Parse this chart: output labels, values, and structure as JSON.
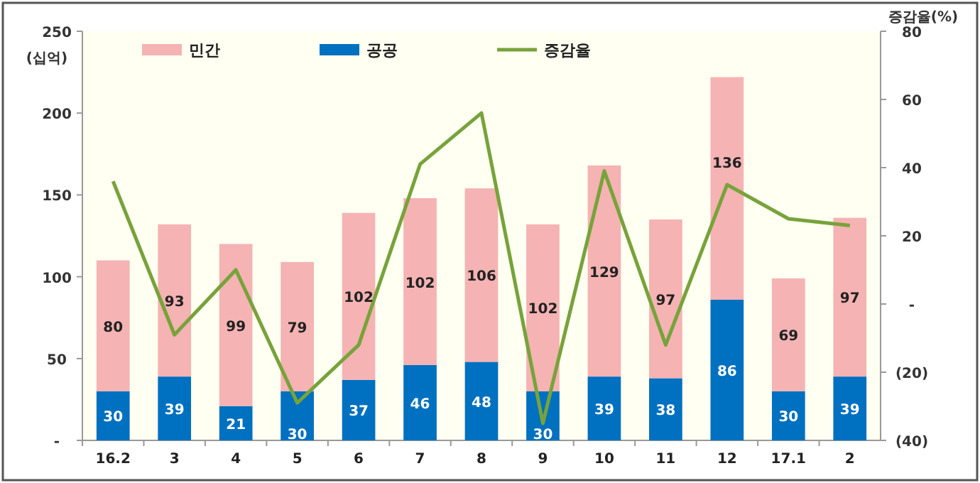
{
  "chart_data": {
    "type": "bar",
    "stacked": true,
    "ylabel": "(십억)",
    "y2label": "증감율(%)",
    "categories": [
      "16.2",
      "3",
      "4",
      "5",
      "6",
      "7",
      "8",
      "9",
      "10",
      "11",
      "12",
      "17.1",
      "2"
    ],
    "series": [
      {
        "name": "공공",
        "color": "#0070c0",
        "values": [
          30,
          39,
          21,
          30,
          37,
          46,
          48,
          30,
          39,
          38,
          86,
          30,
          39
        ],
        "value_labels": [
          "30",
          "39",
          "21",
          "30",
          "37",
          "46",
          "48",
          "30",
          "39",
          "38",
          "86",
          "30",
          "39"
        ]
      },
      {
        "name": "민간",
        "color": "#f5b3b3",
        "values": [
          80,
          93,
          99,
          79,
          102,
          102,
          106,
          102,
          129,
          97,
          136,
          69,
          97
        ],
        "value_labels": [
          "80",
          "93",
          "99",
          "79",
          "102",
          "102",
          "106",
          "102",
          "129",
          "97",
          "136",
          "69",
          "97"
        ]
      },
      {
        "name": "증감율",
        "type": "line",
        "axis": "y2",
        "color": "#77a33a",
        "values": [
          36,
          -9,
          10,
          -29,
          -12,
          41,
          56,
          -35,
          39,
          -12,
          35,
          25,
          23
        ]
      }
    ],
    "ylim": [
      0,
      250
    ],
    "yticks": [
      {
        "value": 0,
        "label": "-"
      },
      50,
      100,
      150,
      200,
      250
    ],
    "y2lim": [
      -40,
      80
    ],
    "y2ticks": [
      {
        "value": -40,
        "label": "(40)"
      },
      {
        "value": -20,
        "label": "(20)"
      },
      {
        "value": 0,
        "label": "-"
      },
      20,
      40,
      60,
      80
    ],
    "legend": "top",
    "grid": false,
    "marker": "none",
    "line_style": "solid"
  }
}
